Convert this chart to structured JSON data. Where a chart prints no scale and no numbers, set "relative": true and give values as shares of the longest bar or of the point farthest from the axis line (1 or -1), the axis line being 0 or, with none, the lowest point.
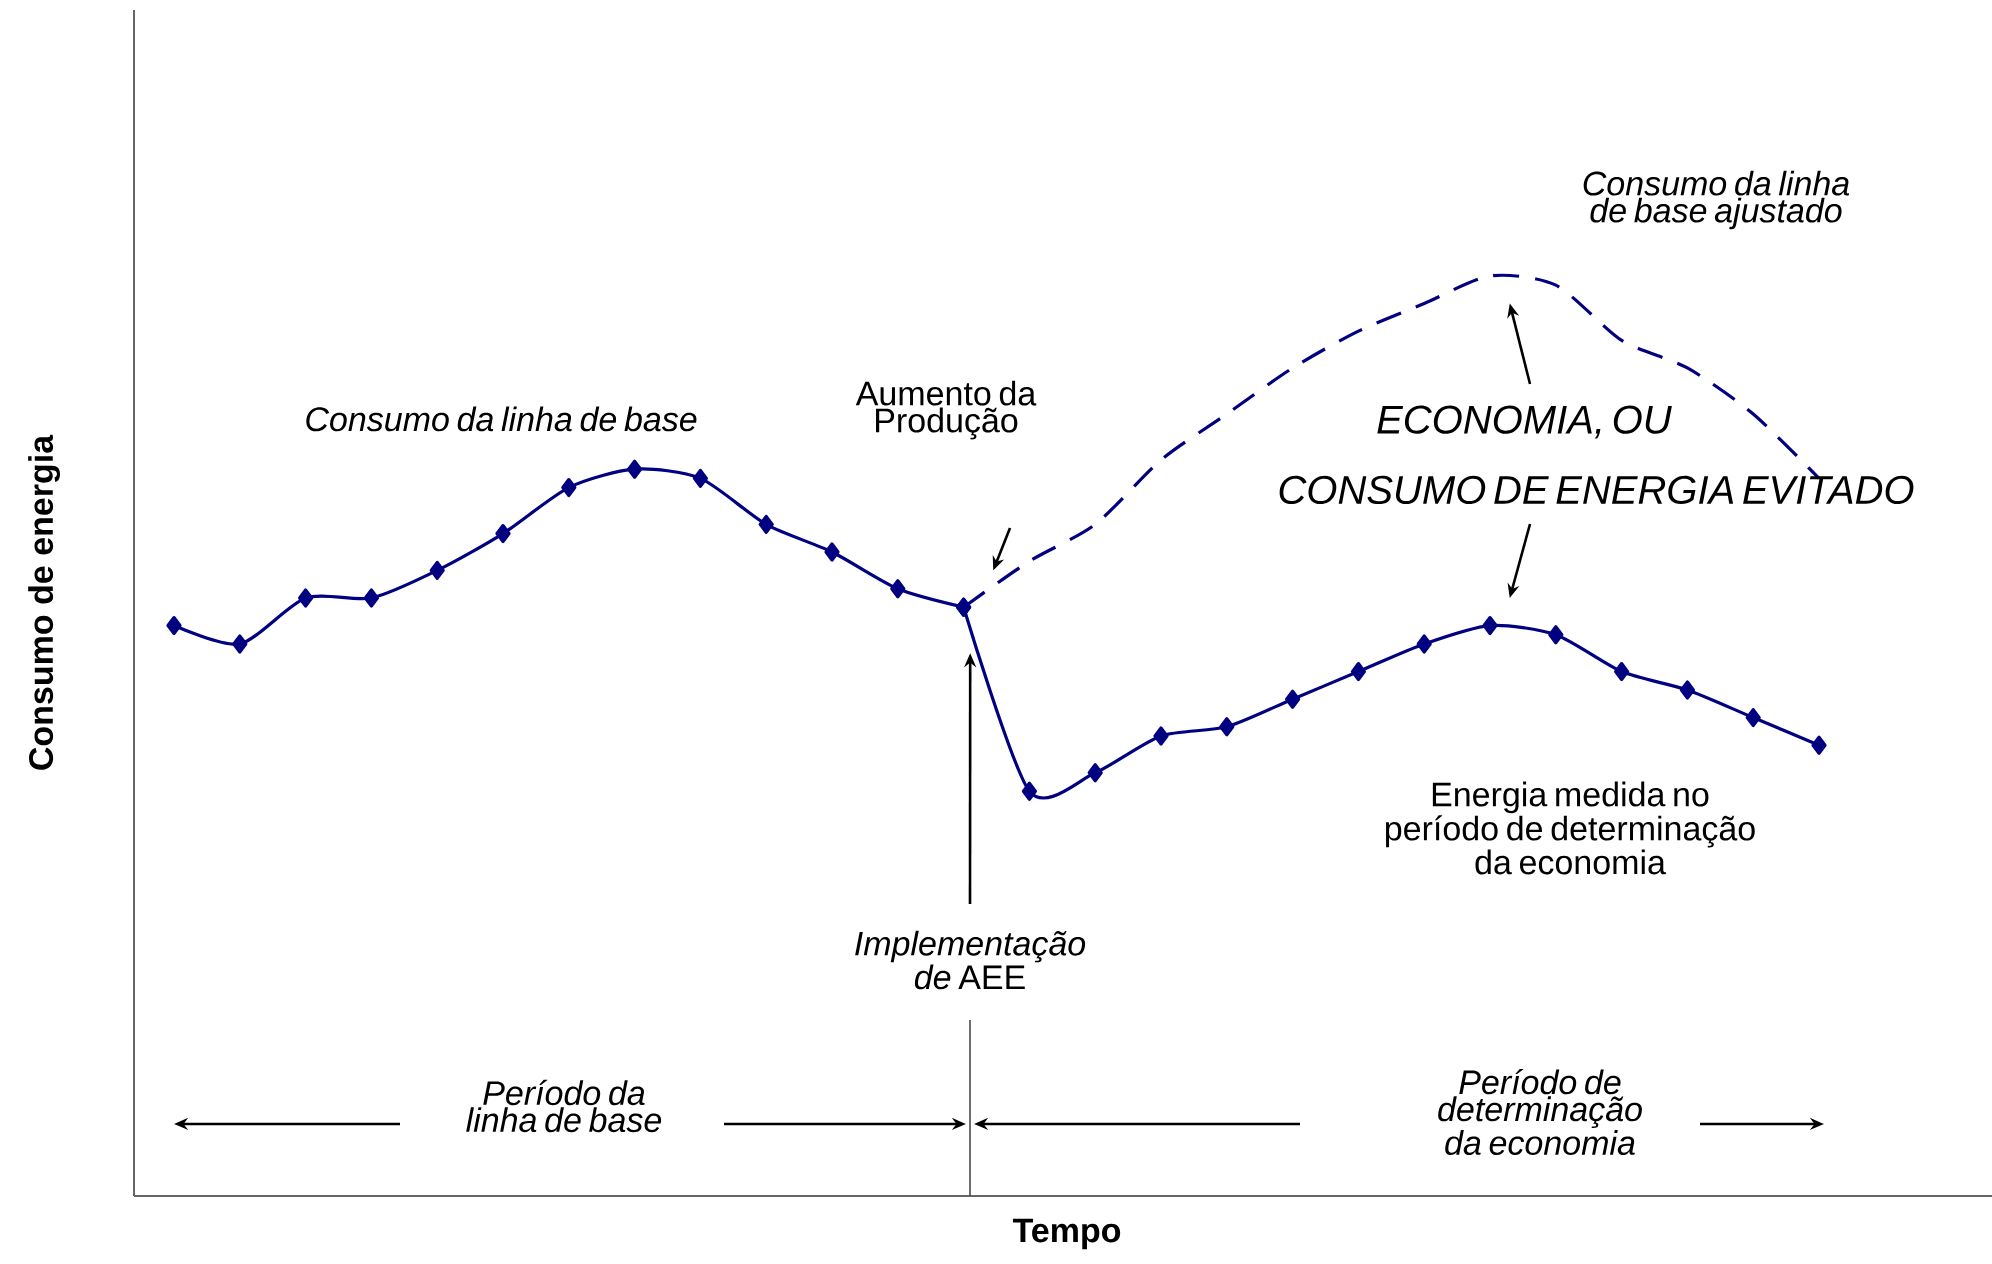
{
  "chart_data": {
    "type": "line",
    "xlabel": "Tempo",
    "ylabel": "Consumo de energia",
    "categories": [
      null,
      null,
      null,
      null,
      null,
      null,
      null,
      null,
      null,
      null,
      null,
      null,
      null,
      null,
      null,
      null,
      null,
      null,
      null,
      null,
      null,
      null,
      null,
      null,
      null,
      null
    ],
    "series": [
      {
        "color": "#000080",
        "marker": "diamond",
        "line_style": "solid",
        "values": [
          0.62,
          0.6,
          0.65,
          0.65,
          0.68,
          0.72,
          0.77,
          0.79,
          0.78,
          0.73,
          0.7,
          0.66,
          0.64,
          null,
          null,
          null,
          null,
          null,
          null,
          null,
          null,
          null,
          null,
          null,
          null,
          null
        ]
      },
      {
        "color": "#000080",
        "marker": "diamond",
        "line_style": "solid",
        "values": [
          null,
          null,
          null,
          null,
          null,
          null,
          null,
          null,
          null,
          null,
          null,
          null,
          0.64,
          0.44,
          0.46,
          0.5,
          0.51,
          0.54,
          0.57,
          0.6,
          0.62,
          0.61,
          0.57,
          0.55,
          0.52,
          0.49
        ]
      },
      {
        "color": "#000080",
        "marker": "none",
        "line_style": "dashed",
        "values": [
          null,
          null,
          null,
          null,
          null,
          null,
          null,
          null,
          null,
          null,
          null,
          null,
          0.64,
          0.69,
          0.73,
          0.8,
          0.85,
          0.9,
          0.94,
          0.97,
          1.0,
          0.99,
          0.93,
          0.9,
          0.85,
          0.78
        ]
      }
    ],
    "annotations": [
      "*Consumo da linha de base*",
      "Aumento da Produção",
      "*Consumo da linha de base ajustado*",
      "*ECONOMIA, OU*",
      "*CONSUMO DE ENERGIA EVITADO*",
      "Energia medida no período de determinação da economia",
      "*Implementação de* AEE",
      "*Período da linha de base*",
      "*Período de determinação da economia*"
    ],
    "relative": true
  }
}
